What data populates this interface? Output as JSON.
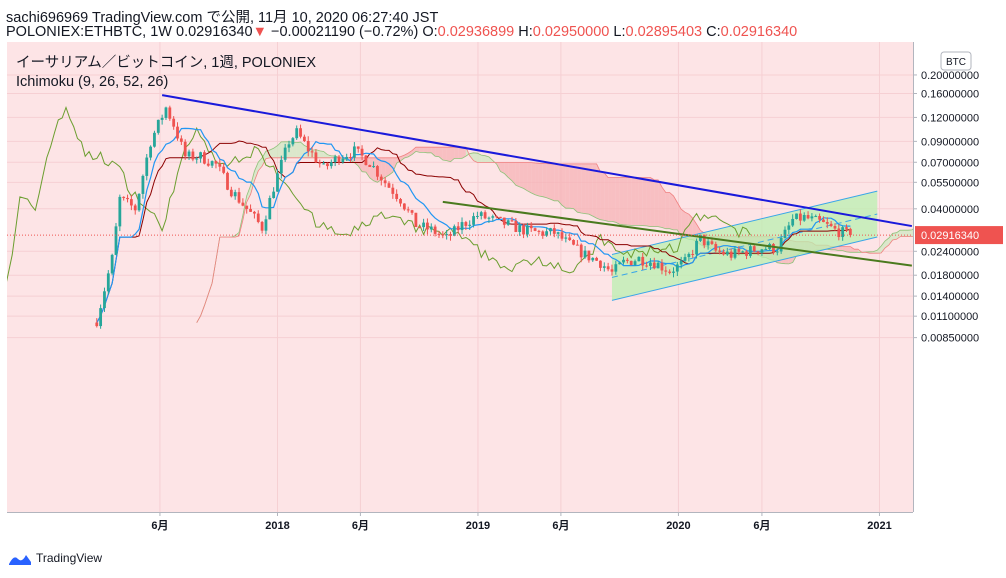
{
  "header": {
    "line1": "sachi696969 TradingView.com で公開, 11月 10, 2020 06:27:40 JST",
    "symbol": "POLONIEX:ETHBTC, 1W",
    "price": "0.02916340",
    "down_arrow": "▼",
    "change": "−0.00021190 (−0.72%)",
    "o_label": "O:",
    "o_value": "0.02936899",
    "h_label": "H:",
    "h_value": "0.02950000",
    "l_label": "L:",
    "l_value": "0.02895403",
    "c_label": "C:",
    "c_value": "0.02916340"
  },
  "legend": {
    "title": "イーサリアム／ビットコイン, 1週, POLONIEX",
    "indicator": "Ichimoku (9, 26, 52, 26)"
  },
  "footer": {
    "brand": "TradingView"
  },
  "colors": {
    "up": "#26a69a",
    "down": "#ef5350",
    "trend_blue": "#1a1adb",
    "trend_green": "#4a7a1e",
    "channel": "#3aa6e8",
    "channel_fill": "#b9f0b0",
    "tenkan": "#2196f3",
    "kijun": "#8b0000",
    "chikou": "#6b9e2f",
    "cloud_bear": "#f6b3b6",
    "cloud_bull": "#cfe8c2"
  },
  "chart_data": {
    "type": "candlestick",
    "scale": "log",
    "currency": "BTC",
    "last_price": 0.0291634,
    "y_ticks": [
      0.2,
      0.16,
      0.12,
      0.09,
      0.07,
      0.055,
      0.04,
      0.024,
      0.018,
      0.014,
      0.011,
      0.0085
    ],
    "y_tick_labels": [
      "0.20000000",
      "0.16000000",
      "0.12000000",
      "0.09000000",
      "0.07000000",
      "0.05500000",
      "0.04000000",
      "0.02400000",
      "0.01800000",
      "0.01400000",
      "0.01100000",
      "0.00850000"
    ],
    "x_ticks": [
      {
        "label": "6月",
        "date": "2017-06-01"
      },
      {
        "label": "2018",
        "date": "2018-01-01"
      },
      {
        "label": "6月",
        "date": "2018-06-01"
      },
      {
        "label": "2019",
        "date": "2019-01-01"
      },
      {
        "label": "6月",
        "date": "2019-06-01"
      },
      {
        "label": "2020",
        "date": "2020-01-01"
      },
      {
        "label": "6月",
        "date": "2020-06-01"
      },
      {
        "label": "2021",
        "date": "2021-01-01"
      }
    ],
    "close_series": [
      [
        "2017-02-06",
        0.0105
      ],
      [
        "2017-03-06",
        0.022
      ],
      [
        "2017-03-20",
        0.045
      ],
      [
        "2017-04-17",
        0.04
      ],
      [
        "2017-05-15",
        0.09
      ],
      [
        "2017-06-12",
        0.135
      ],
      [
        "2017-06-26",
        0.11
      ],
      [
        "2017-07-17",
        0.075
      ],
      [
        "2017-08-14",
        0.075
      ],
      [
        "2017-09-11",
        0.068
      ],
      [
        "2017-10-09",
        0.05
      ],
      [
        "2017-11-06",
        0.04
      ],
      [
        "2017-12-04",
        0.032
      ],
      [
        "2017-12-25",
        0.052
      ],
      [
        "2018-01-22",
        0.09
      ],
      [
        "2018-02-05",
        0.1
      ],
      [
        "2018-02-26",
        0.082
      ],
      [
        "2018-03-26",
        0.065
      ],
      [
        "2018-04-23",
        0.075
      ],
      [
        "2018-05-21",
        0.08
      ],
      [
        "2018-06-18",
        0.07
      ],
      [
        "2018-07-16",
        0.055
      ],
      [
        "2018-08-13",
        0.045
      ],
      [
        "2018-09-10",
        0.033
      ],
      [
        "2018-10-08",
        0.031
      ],
      [
        "2018-11-05",
        0.028
      ],
      [
        "2018-12-03",
        0.033
      ],
      [
        "2018-12-31",
        0.037
      ],
      [
        "2019-01-28",
        0.035
      ],
      [
        "2019-02-25",
        0.033
      ],
      [
        "2019-03-25",
        0.031
      ],
      [
        "2019-04-22",
        0.03
      ],
      [
        "2019-05-20",
        0.03
      ],
      [
        "2019-06-17",
        0.026
      ],
      [
        "2019-07-15",
        0.023
      ],
      [
        "2019-08-12",
        0.021
      ],
      [
        "2019-09-02",
        0.0185
      ],
      [
        "2019-09-23",
        0.021
      ],
      [
        "2019-10-21",
        0.022
      ],
      [
        "2019-11-18",
        0.021
      ],
      [
        "2019-12-16",
        0.019
      ],
      [
        "2020-01-13",
        0.021
      ],
      [
        "2020-02-10",
        0.028
      ],
      [
        "2020-03-09",
        0.024
      ],
      [
        "2020-04-06",
        0.023
      ],
      [
        "2020-05-04",
        0.024
      ],
      [
        "2020-06-01",
        0.025
      ],
      [
        "2020-06-29",
        0.025
      ],
      [
        "2020-07-27",
        0.035
      ],
      [
        "2020-08-17",
        0.036
      ],
      [
        "2020-09-14",
        0.034
      ],
      [
        "2020-10-12",
        0.031
      ],
      [
        "2020-11-09",
        0.0291634
      ]
    ],
    "trendlines": [
      {
        "from": [
          "2017-06-05",
          0.157
        ],
        "to": [
          "2021-03-01",
          0.0325
        ]
      },
      {
        "from": [
          "2018-10-29",
          0.0435
        ],
        "to": [
          "2021-03-01",
          0.0202
        ]
      }
    ],
    "channel": {
      "lower": {
        "from": [
          "2019-09-02",
          0.0133
        ],
        "to": [
          "2020-12-28",
          0.0285
        ]
      },
      "upper": {
        "from": [
          "2019-09-02",
          0.0231
        ],
        "to": [
          "2020-12-28",
          0.0495
        ]
      }
    }
  }
}
